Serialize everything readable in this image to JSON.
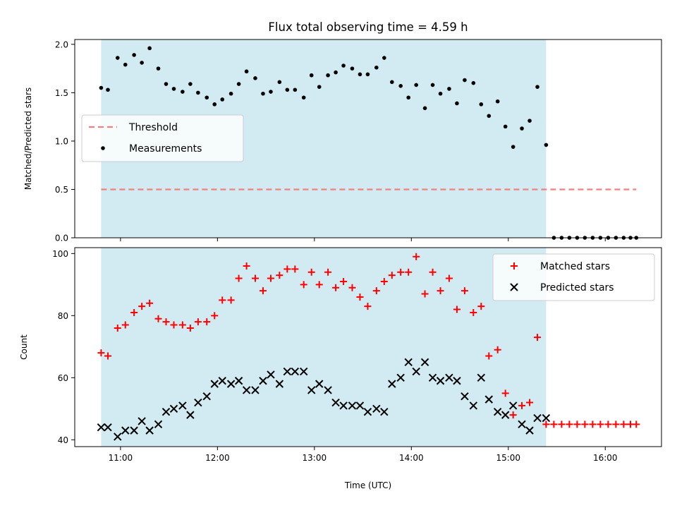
{
  "figure": {
    "title": "Flux total observing time = 4.59 h",
    "xlabel": "Time (UTC)",
    "x_ticks": [
      {
        "value": 11,
        "label": "11:00"
      },
      {
        "value": 12,
        "label": "12:00"
      },
      {
        "value": 13,
        "label": "13:00"
      },
      {
        "value": 14,
        "label": "14:00"
      },
      {
        "value": 15,
        "label": "15:00"
      },
      {
        "value": 16,
        "label": "16:00"
      }
    ],
    "xlim": [
      10.528,
      16.58
    ]
  },
  "chart_data": [
    {
      "type": "scatter",
      "panel": "top",
      "ylabel": "Matched/Predicted stars",
      "ylim": [
        0,
        2.05
      ],
      "y_ticks": [
        {
          "value": 0,
          "label": "0.0"
        },
        {
          "value": 0.5,
          "label": "0.5"
        },
        {
          "value": 1.0,
          "label": "1.0"
        },
        {
          "value": 1.5,
          "label": "1.5"
        },
        {
          "value": 2.0,
          "label": "2.0"
        }
      ],
      "observing_window": {
        "start": 10.8,
        "end": 15.39,
        "color": "#add8e6"
      },
      "threshold": {
        "name": "Threshold",
        "value": 0.5,
        "x_start": 10.8,
        "x_end": 16.32,
        "color": "#f08080",
        "style": "dashed"
      },
      "legend": {
        "placement": "center-left",
        "entries": [
          {
            "label": "Threshold",
            "marker": "dashed-line",
            "color": "#f08080"
          },
          {
            "label": "Measurements",
            "marker": "dot",
            "color": "#000000"
          }
        ]
      },
      "series": [
        {
          "name": "Measurements",
          "color": "#000000",
          "x": [
            10.8,
            10.87,
            10.97,
            11.05,
            11.14,
            11.22,
            11.3,
            11.39,
            11.47,
            11.55,
            11.64,
            11.72,
            11.8,
            11.89,
            11.97,
            12.05,
            12.14,
            12.22,
            12.3,
            12.39,
            12.47,
            12.55,
            12.64,
            12.72,
            12.8,
            12.89,
            12.97,
            13.05,
            13.14,
            13.22,
            13.3,
            13.39,
            13.47,
            13.55,
            13.64,
            13.72,
            13.8,
            13.89,
            13.97,
            14.05,
            14.14,
            14.22,
            14.3,
            14.39,
            14.47,
            14.55,
            14.64,
            14.72,
            14.8,
            14.89,
            14.97,
            15.05,
            15.14,
            15.22,
            15.3,
            15.39,
            15.47,
            15.55,
            15.63,
            15.71,
            15.79,
            15.87,
            15.95,
            16.03,
            16.11,
            16.19,
            16.26,
            16.32
          ],
          "y": [
            1.55,
            1.53,
            1.86,
            1.79,
            1.89,
            1.81,
            1.96,
            1.75,
            1.59,
            1.54,
            1.51,
            1.59,
            1.5,
            1.45,
            1.38,
            1.43,
            1.49,
            1.59,
            1.72,
            1.65,
            1.49,
            1.51,
            1.61,
            1.53,
            1.53,
            1.45,
            1.68,
            1.56,
            1.68,
            1.71,
            1.78,
            1.75,
            1.69,
            1.69,
            1.76,
            1.86,
            1.61,
            1.57,
            1.45,
            1.58,
            1.34,
            1.58,
            1.49,
            1.54,
            1.39,
            1.63,
            1.6,
            1.38,
            1.26,
            1.41,
            1.15,
            0.94,
            1.13,
            1.21,
            1.56,
            0.96,
            0,
            0,
            0,
            0,
            0,
            0,
            0,
            0,
            0,
            0,
            0,
            0
          ]
        }
      ]
    },
    {
      "type": "scatter",
      "panel": "bottom",
      "ylabel": "Count",
      "ylim": [
        37.8,
        101.9
      ],
      "y_ticks": [
        {
          "value": 40,
          "label": "40"
        },
        {
          "value": 60,
          "label": "60"
        },
        {
          "value": 80,
          "label": "80"
        },
        {
          "value": 100,
          "label": "100"
        }
      ],
      "observing_window": {
        "start": 10.8,
        "end": 15.39,
        "color": "#add8e6"
      },
      "legend": {
        "placement": "top-right",
        "entries": [
          {
            "label": "Matched stars",
            "marker": "plus",
            "color": "#ff0000"
          },
          {
            "label": "Predicted stars",
            "marker": "x",
            "color": "#000000"
          }
        ]
      },
      "series": [
        {
          "name": "Matched stars",
          "marker": "plus",
          "color": "#ff0000",
          "x": [
            10.8,
            10.87,
            10.97,
            11.05,
            11.14,
            11.22,
            11.3,
            11.39,
            11.47,
            11.55,
            11.64,
            11.72,
            11.8,
            11.89,
            11.97,
            12.05,
            12.14,
            12.22,
            12.3,
            12.39,
            12.47,
            12.55,
            12.64,
            12.72,
            12.8,
            12.89,
            12.97,
            13.05,
            13.14,
            13.22,
            13.3,
            13.39,
            13.47,
            13.55,
            13.64,
            13.72,
            13.8,
            13.89,
            13.97,
            14.05,
            14.14,
            14.22,
            14.3,
            14.39,
            14.47,
            14.55,
            14.64,
            14.72,
            14.8,
            14.89,
            14.97,
            15.05,
            15.14,
            15.22,
            15.3,
            15.39,
            15.47,
            15.55,
            15.63,
            15.71,
            15.79,
            15.87,
            15.95,
            16.03,
            16.11,
            16.19,
            16.26,
            16.32
          ],
          "y": [
            68,
            67,
            76,
            77,
            81,
            83,
            84,
            79,
            78,
            77,
            77,
            76,
            78,
            78,
            80,
            85,
            85,
            92,
            96,
            92,
            88,
            92,
            93,
            95,
            95,
            90,
            94,
            90,
            94,
            89,
            91,
            89,
            86,
            83,
            88,
            91,
            93,
            94,
            94,
            99,
            87,
            94,
            88,
            92,
            82,
            88,
            81,
            83,
            67,
            69,
            55,
            48,
            51,
            52,
            73,
            45,
            45,
            45,
            45,
            45,
            45,
            45,
            45,
            45,
            45,
            45,
            45,
            45
          ]
        },
        {
          "name": "Predicted stars",
          "marker": "x",
          "color": "#000000",
          "x": [
            10.8,
            10.87,
            10.97,
            11.05,
            11.14,
            11.22,
            11.3,
            11.39,
            11.47,
            11.55,
            11.64,
            11.72,
            11.8,
            11.89,
            11.97,
            12.05,
            12.14,
            12.22,
            12.3,
            12.39,
            12.47,
            12.55,
            12.64,
            12.72,
            12.8,
            12.89,
            12.97,
            13.05,
            13.14,
            13.22,
            13.3,
            13.39,
            13.47,
            13.55,
            13.64,
            13.72,
            13.8,
            13.89,
            13.97,
            14.05,
            14.14,
            14.22,
            14.3,
            14.39,
            14.47,
            14.55,
            14.64,
            14.72,
            14.8,
            14.89,
            14.97,
            15.05,
            15.14,
            15.22,
            15.3,
            15.39
          ],
          "y": [
            44,
            44,
            41,
            43,
            43,
            46,
            43,
            45,
            49,
            50,
            51,
            48,
            52,
            54,
            58,
            59,
            58,
            59,
            56,
            56,
            59,
            61,
            58,
            62,
            62,
            62,
            56,
            58,
            56,
            52,
            51,
            51,
            51,
            49,
            50,
            49,
            58,
            60,
            65,
            62,
            65,
            60,
            59,
            60,
            59,
            54,
            51,
            60,
            53,
            49,
            48,
            51,
            45,
            43,
            47,
            47
          ]
        }
      ]
    }
  ]
}
